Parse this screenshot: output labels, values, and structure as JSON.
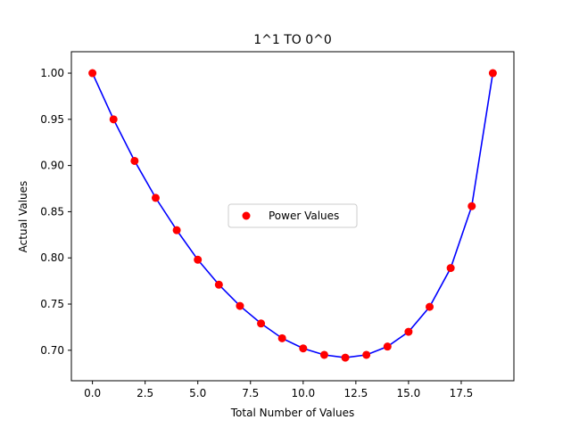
{
  "chart_data": {
    "type": "scatter",
    "title": "1^1 TO 0^0",
    "xlabel": "Total Number of Values",
    "ylabel": "Actual Values",
    "xlim": [
      -1,
      20
    ],
    "ylim": [
      0.667,
      1.0232
    ],
    "x_ticks": [
      0,
      2.5,
      5,
      7.5,
      10,
      12.5,
      15,
      17.5
    ],
    "x_tick_labels": [
      "0.0",
      "2.5",
      "5.0",
      "7.5",
      "10.0",
      "12.5",
      "15.0",
      "17.5"
    ],
    "y_ticks": [
      0.7,
      0.75,
      0.8,
      0.85,
      0.9,
      0.95,
      1.0
    ],
    "y_tick_labels": [
      "0.70",
      "0.75",
      "0.80",
      "0.85",
      "0.90",
      "0.95",
      "1.00"
    ],
    "grid": false,
    "legend_position": "center",
    "series": [
      {
        "name": "Power Values",
        "marker_color": "#ff0000",
        "line_color": "#0000ff",
        "x": [
          0,
          1,
          2,
          3,
          4,
          5,
          6,
          7,
          8,
          9,
          10,
          11,
          12,
          13,
          14,
          15,
          16,
          17,
          18,
          19
        ],
        "y": [
          1.0,
          0.95,
          0.905,
          0.865,
          0.83,
          0.798,
          0.771,
          0.748,
          0.729,
          0.713,
          0.702,
          0.695,
          0.692,
          0.695,
          0.704,
          0.72,
          0.747,
          0.789,
          0.856,
          1.0
        ]
      }
    ]
  }
}
